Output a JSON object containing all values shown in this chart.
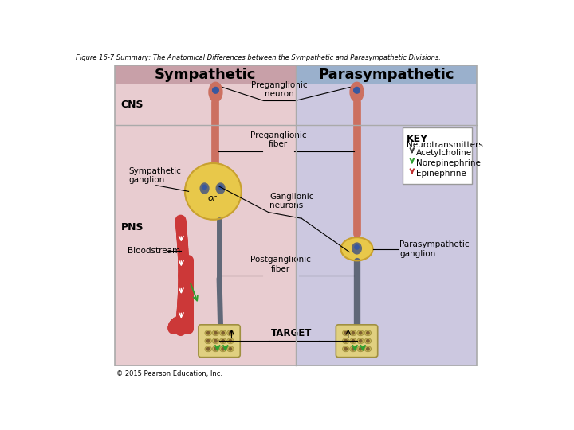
{
  "figure_title": "Figure 16-7 Summary: The Anatomical Differences between the Sympathetic and Parasympathetic Divisions.",
  "col_left_title": "Sympathetic",
  "col_right_title": "Parasympathetic",
  "header_bg_left": "#c8a0a8",
  "header_bg_right": "#9ab0cc",
  "body_bg_left": "#e8ccd0",
  "body_bg_right": "#ccc8e0",
  "cns_label": "CNS",
  "pns_label": "PNS",
  "preganglionic_neuron_label": "Preganglionic\nneuron",
  "preganglionic_fiber_label": "Preganglionic\nfiber",
  "sympathetic_ganglion_label": "Sympathetic\nganglion",
  "ganglionic_neurons_label": "Ganglionic\nneurons",
  "bloodstream_label": "Bloodstream",
  "postganglionic_fiber_label": "Postganglionic\nfiber",
  "parasympathetic_ganglion_label": "Parasympathetic\nganglion",
  "target_label": "TARGET",
  "key_title": "KEY",
  "key_subtitle": "Neurotransmitters",
  "acetylcholine_label": "Acetylcholine",
  "norepinephrine_label": "Norepinephrine",
  "epinephrine_label": "Epinephrine",
  "neuron_color": "#cc7060",
  "ganglion_color": "#e8c84a",
  "ganglion_border": "#c8a030",
  "cell_body_color": "#606878",
  "nucleus_color": "#3858a0",
  "vessel_color": "#cc3838",
  "target_bg": "#e0d080",
  "target_border": "#a09040",
  "target_cell": "#c8b858",
  "target_dot": "#806030",
  "green_arrow": "#30a030",
  "copyright": "© 2015 Pearson Education, Inc."
}
